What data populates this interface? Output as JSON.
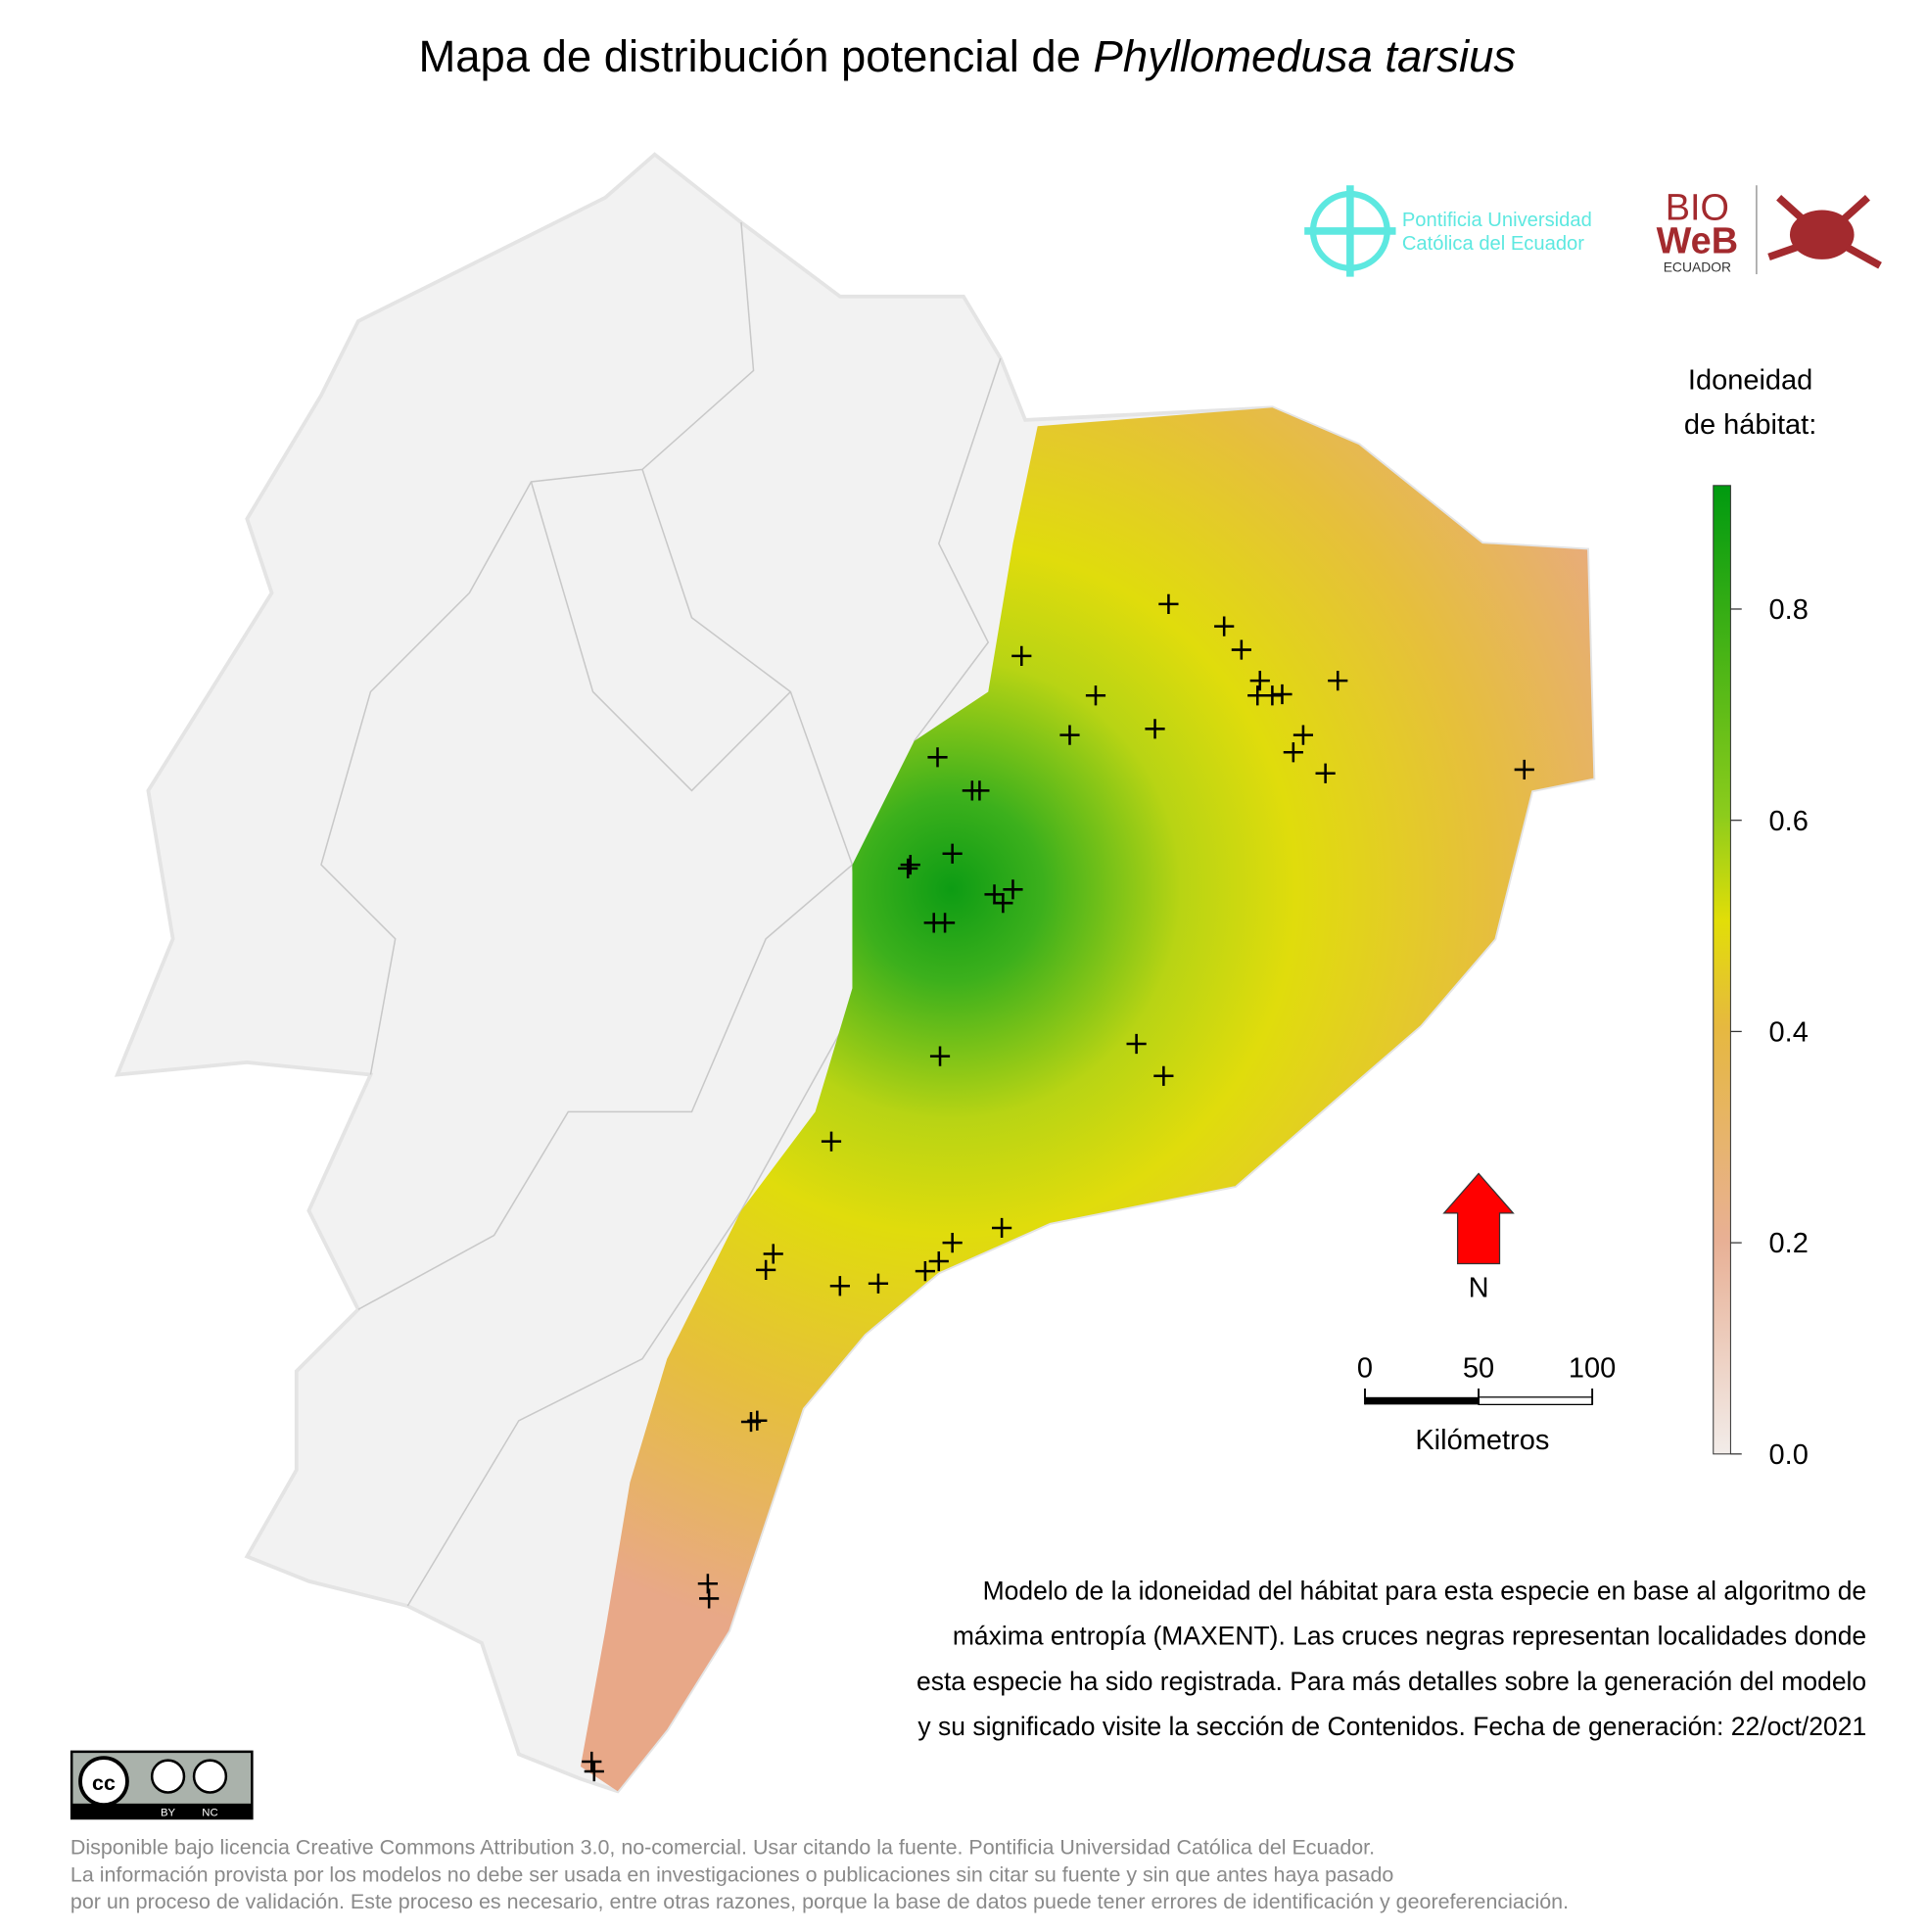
{
  "title": {
    "prefix": "Mapa de distribución potencial de",
    "species": "Phyllomedusa tarsius"
  },
  "logos": {
    "puce_line1": "Pontificia Universidad",
    "puce_line2": "Católica del Ecuador",
    "bioweb_top": "BIO",
    "bioweb_mid": "WeB",
    "bioweb_bottom": "ECUADOR"
  },
  "legend": {
    "title_line1": "Idoneidad",
    "title_line2": "de hábitat:",
    "range": [
      0,
      0.917
    ],
    "ticks": [
      {
        "value": 0,
        "label": "0.0"
      },
      0.2,
      0.4,
      0.6,
      0.8
    ]
  },
  "north": "N",
  "scale_bar": {
    "ticks": [
      0,
      50,
      100
    ],
    "label": "Kilómetros"
  },
  "caption": [
    "Modelo de la idoneidad del hábitat para esta especie en base al algoritmo de",
    "máxima entropía (MAXENT). Las cruces negras representan localidades donde",
    "esta especie ha sido registrada. Para más detalles sobre la generación del modelo",
    "y su significado visite la sección de Contenidos. Fecha de generación: 22/oct/2021"
  ],
  "license_badge": {
    "by": "BY",
    "nc": "NC"
  },
  "license": [
    "Disponible bajo licencia Creative Commons Attribution 3.0, no-comercial. Usar citando la fuente. Pontificia Universidad Católica del Ecuador.",
    "La información provista por los modelos no debe ser usada en investigaciones o publicaciones sin citar su fuente y sin que antes haya pasado",
    "por un proceso de validación. Este proceso es necesario, entre otras razones, porque la base de datos puede tener errores de identificación y georeferenciación."
  ]
}
